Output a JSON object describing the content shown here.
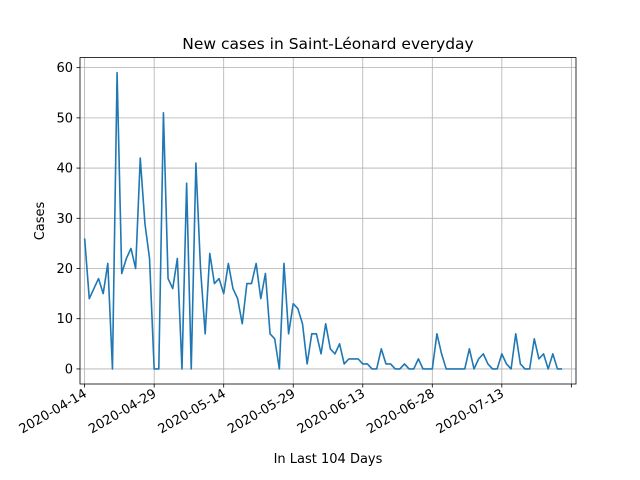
{
  "chart_data": {
    "type": "line",
    "title": "New cases in Saint-Léonard everyday",
    "xlabel": "In Last 104 Days",
    "ylabel": "Cases",
    "start_date": "2020-04-14",
    "end_date": "2020-07-26",
    "xlim": [
      "2020-04-13",
      "2020-07-29"
    ],
    "ylim": [
      -3,
      62
    ],
    "grid": true,
    "x_ticks": [
      "2020-04-14",
      "2020-04-29",
      "2020-05-14",
      "2020-05-29",
      "2020-06-13",
      "2020-06-28",
      "2020-07-13",
      "2020-07-28"
    ],
    "x_tick_labels": [
      "2020-04-14",
      "2020-04-29",
      "2020-05-14",
      "2020-05-29",
      "2020-06-13",
      "2020-06-28",
      "2020-07-13",
      ""
    ],
    "y_ticks": [
      0,
      10,
      20,
      30,
      40,
      50,
      60
    ],
    "series": [
      {
        "color": "#1f77b4",
        "values": [
          26,
          14,
          16,
          18,
          15,
          21,
          0,
          59,
          19,
          22,
          24,
          20,
          42,
          29,
          22,
          0,
          0,
          51,
          18,
          16,
          22,
          0,
          37,
          0,
          41,
          20,
          7,
          23,
          17,
          18,
          15,
          21,
          16,
          14,
          9,
          17,
          17,
          21,
          14,
          19,
          7,
          6,
          0,
          21,
          7,
          13,
          12,
          9,
          1,
          7,
          7,
          3,
          9,
          4,
          3,
          5,
          1,
          2,
          2,
          2,
          1,
          1,
          0,
          0,
          4,
          1,
          1,
          0,
          0,
          1,
          0,
          0,
          2,
          0,
          0,
          0,
          7,
          3,
          0,
          0,
          0,
          0,
          0,
          4,
          0,
          2,
          3,
          1,
          0,
          0,
          3,
          1,
          0,
          7,
          1,
          0,
          0,
          6,
          2,
          3,
          0,
          3,
          0,
          0
        ]
      }
    ]
  }
}
